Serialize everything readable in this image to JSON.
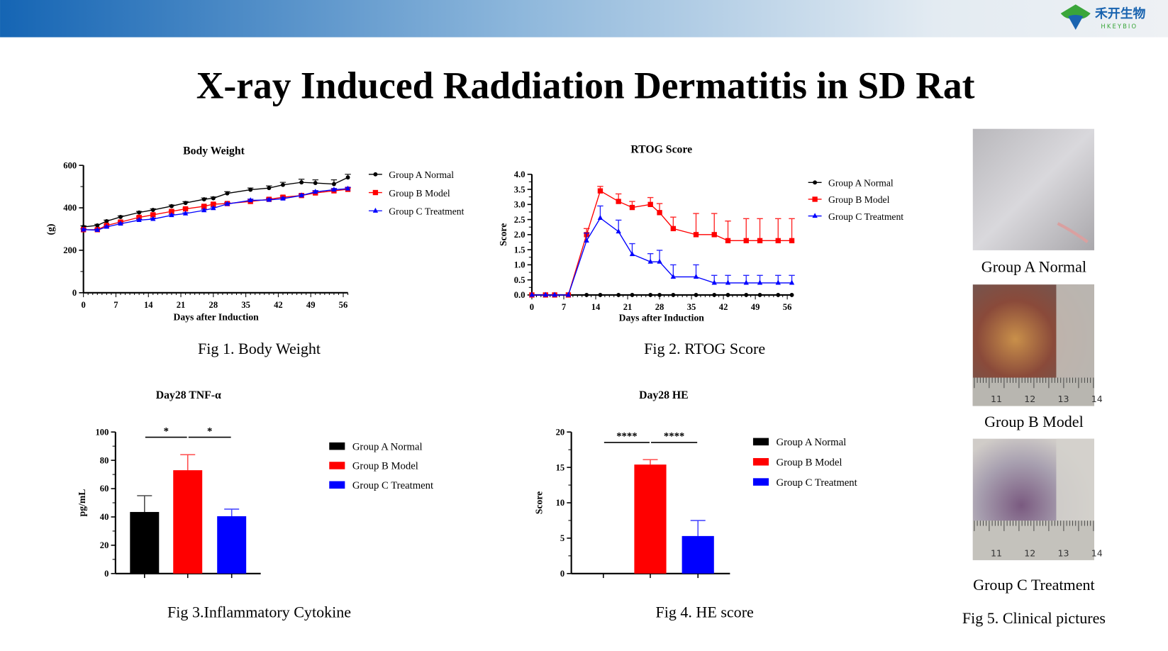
{
  "header": {
    "logo_text": "禾开生物",
    "logo_sub": "HKEYBIO",
    "band_color_start": "#1565b4",
    "band_color_end": "#eef1f4"
  },
  "title": "X-ray Induced Raddiation Dermatitis in SD Rat",
  "colors": {
    "group_a": "#000000",
    "group_b": "#ff0000",
    "group_c": "#0000ff"
  },
  "captions": {
    "fig1": "Fig 1. Body Weight",
    "fig2": "Fig 2. RTOG Score",
    "fig3": "Fig 3.Inflammatory Cytokine",
    "fig4": "Fig 4. HE score",
    "fig5": "Fig 5. Clinical  pictures"
  },
  "photos": [
    {
      "label": "Group A Normal",
      "ruler_numbers": []
    },
    {
      "label": "Group B Model",
      "ruler_numbers": [
        "11",
        "12",
        "13",
        "14"
      ]
    },
    {
      "label": "Group C Treatment",
      "ruler_numbers": [
        "11",
        "12",
        "13",
        "14"
      ]
    }
  ],
  "chart_data": [
    {
      "type": "line",
      "title": "Body Weight",
      "xlabel": "Days after Induction",
      "ylabel": "(g)",
      "xlim": [
        0,
        57
      ],
      "ylim": [
        0,
        600
      ],
      "xticks": [
        0,
        7,
        14,
        21,
        28,
        35,
        42,
        49,
        56
      ],
      "yticks": [
        0,
        200,
        400,
        600
      ],
      "legend": "right",
      "x": [
        0,
        3,
        5,
        8,
        12,
        15,
        19,
        22,
        26,
        28,
        31,
        36,
        40,
        43,
        47,
        50,
        54,
        57
      ],
      "series": [
        {
          "name": "Group A Normal",
          "marker": "circle",
          "color": "#000000",
          "values": [
            310,
            317,
            337,
            357,
            378,
            390,
            408,
            423,
            440,
            445,
            468,
            485,
            493,
            508,
            520,
            517,
            512,
            543
          ],
          "err": [
            5,
            5,
            5,
            5,
            5,
            5,
            5,
            6,
            6,
            6,
            8,
            8,
            10,
            12,
            15,
            15,
            20,
            15
          ]
        },
        {
          "name": "Group B Model",
          "marker": "square",
          "color": "#ff0000",
          "values": [
            297,
            297,
            317,
            333,
            355,
            367,
            383,
            395,
            407,
            417,
            420,
            430,
            440,
            450,
            458,
            470,
            480,
            487
          ],
          "err": [
            4,
            4,
            4,
            4,
            4,
            4,
            4,
            4,
            5,
            5,
            5,
            5,
            6,
            6,
            6,
            6,
            6,
            6
          ]
        },
        {
          "name": "Group C Treatment",
          "marker": "triangle",
          "color": "#0000ff",
          "values": [
            297,
            295,
            310,
            325,
            342,
            347,
            365,
            373,
            388,
            398,
            418,
            435,
            437,
            443,
            458,
            475,
            485,
            490
          ],
          "err": [
            4,
            4,
            4,
            4,
            4,
            4,
            4,
            4,
            5,
            5,
            5,
            6,
            6,
            6,
            6,
            6,
            6,
            6
          ]
        }
      ]
    },
    {
      "type": "line",
      "title": "RTOG Score",
      "xlabel": "Days after Induction",
      "ylabel": "Score",
      "xlim": [
        0,
        57
      ],
      "ylim": [
        0,
        4
      ],
      "xticks": [
        0,
        7,
        14,
        21,
        28,
        35,
        42,
        49,
        56
      ],
      "yticks": [
        "0.0",
        "0.5",
        "1.0",
        "1.5",
        "2.0",
        "2.5",
        "3.0",
        "3.5",
        "4.0"
      ],
      "legend": "right",
      "x": [
        0,
        3,
        5,
        8,
        12,
        15,
        19,
        22,
        26,
        28,
        31,
        36,
        40,
        43,
        47,
        50,
        54,
        57
      ],
      "series": [
        {
          "name": "Group A Normal",
          "marker": "circle",
          "color": "#000000",
          "values": [
            0,
            0,
            0,
            0,
            0,
            0,
            0,
            0,
            0,
            0,
            0,
            0,
            0,
            0,
            0,
            0,
            0,
            0
          ],
          "err": [
            0,
            0,
            0,
            0,
            0,
            0,
            0,
            0,
            0,
            0,
            0,
            0,
            0,
            0,
            0,
            0,
            0,
            0
          ]
        },
        {
          "name": "Group B Model",
          "marker": "square",
          "color": "#ff0000",
          "values": [
            0,
            0,
            0,
            0,
            2.0,
            3.45,
            3.1,
            2.9,
            3.0,
            2.73,
            2.2,
            2.0,
            2.0,
            1.8,
            1.8,
            1.8,
            1.8,
            1.8
          ],
          "err": [
            0,
            0,
            0,
            0,
            0.2,
            0.15,
            0.25,
            0.2,
            0.23,
            0.3,
            0.38,
            0.7,
            0.7,
            0.65,
            0.73,
            0.73,
            0.73,
            0.73
          ]
        },
        {
          "name": "Group C Treatment",
          "marker": "triangle",
          "color": "#0000ff",
          "values": [
            0,
            0,
            0,
            0,
            1.8,
            2.55,
            2.1,
            1.35,
            1.1,
            1.1,
            0.6,
            0.6,
            0.4,
            0.4,
            0.4,
            0.4,
            0.4,
            0.4
          ],
          "err": [
            0,
            0,
            0,
            0,
            0.25,
            0.4,
            0.38,
            0.35,
            0.27,
            0.38,
            0.4,
            0.4,
            0.25,
            0.25,
            0.25,
            0.25,
            0.25,
            0.25
          ]
        }
      ]
    },
    {
      "type": "bar",
      "title": "Day28 TNF-α",
      "ylabel": "pg/mL",
      "ylim": [
        0,
        100
      ],
      "yticks": [
        0,
        20,
        40,
        60,
        80,
        100
      ],
      "legend": "right",
      "categories": [
        "Group A Normal",
        "Group B Model",
        "Group C Treatment"
      ],
      "values": [
        43.5,
        73,
        40.5
      ],
      "err": [
        11.5,
        11,
        5
      ],
      "bar_colors": [
        "#000000",
        "#ff0000",
        "#0000ff"
      ],
      "significance": [
        {
          "pair": [
            0,
            1
          ],
          "label": "*"
        },
        {
          "pair": [
            1,
            2
          ],
          "label": "*"
        }
      ]
    },
    {
      "type": "bar",
      "title": "Day28 HE",
      "ylabel": "Score",
      "ylim": [
        0,
        20
      ],
      "yticks": [
        0,
        5,
        10,
        15,
        20
      ],
      "legend": "right",
      "categories": [
        "Group A Normal",
        "Group B Model",
        "Group C Treatment"
      ],
      "values": [
        0,
        15.4,
        5.3
      ],
      "err": [
        0,
        0.7,
        2.2
      ],
      "bar_colors": [
        "#000000",
        "#ff0000",
        "#0000ff"
      ],
      "significance": [
        {
          "pair": [
            0,
            1
          ],
          "label": "****"
        },
        {
          "pair": [
            1,
            2
          ],
          "label": "****"
        }
      ]
    }
  ]
}
